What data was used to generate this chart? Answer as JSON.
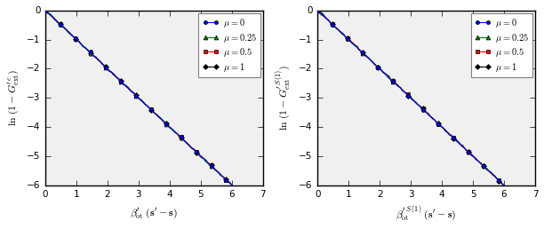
{
  "x_max": 6.0,
  "y_min": -6,
  "y_max": 0,
  "x_ticks": [
    0,
    1,
    2,
    3,
    4,
    5,
    6,
    7
  ],
  "y_ticks": [
    0,
    -1,
    -2,
    -3,
    -4,
    -5,
    -6
  ],
  "mu_values": [
    0,
    0.25,
    0.5,
    1
  ],
  "mu_labels": [
    "$\\mu = 0$",
    "$\\mu = 0.25$",
    "$\\mu = 0.5$",
    "$\\mu = 1$"
  ],
  "colors": [
    "blue",
    "green",
    "red",
    "black"
  ],
  "markers": [
    "o",
    "^",
    "s",
    "D"
  ],
  "markersizes": [
    3,
    3.5,
    3,
    3
  ],
  "left_ylabel": "$\\ln\\,(1-G_{\\mathrm{ext}}^{\\prime\\,e})$",
  "right_ylabel": "$\\ln\\,(1-G_{\\mathrm{ext}}^{\\prime\\,S\\,(1)})$",
  "left_xlabel": "$\\beta_{\\mathrm{ot}}^{\\prime}\\;(\\mathbf{s}^{\\prime}-\\mathbf{s})$",
  "right_xlabel": "$\\beta_{\\mathrm{ot}}^{\\prime\\,S\\,(1)}\\;(\\mathbf{s}^{\\prime}-\\mathbf{s})$",
  "n_points": 100,
  "slope": -1.0,
  "noise_scale": 0.015,
  "marker_every": 8,
  "linewidth": 0.8,
  "bg_color": "#f0f0f0",
  "figsize": [
    6.12,
    2.58
  ],
  "dpi": 100
}
